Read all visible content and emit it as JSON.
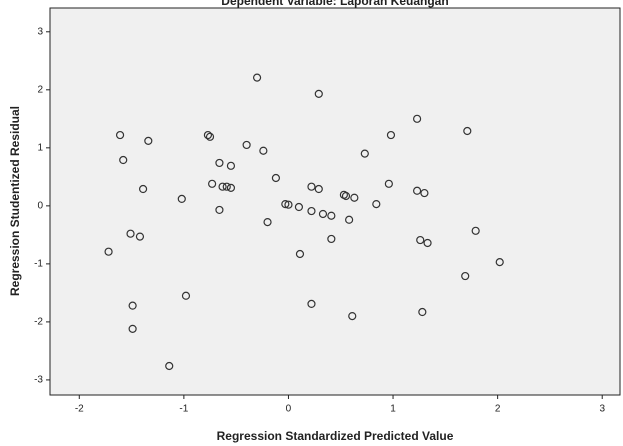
{
  "chart_data": {
    "type": "scatter",
    "title": "Dependent Variable: Laporan Keuangan",
    "xlabel": "Regression Standardized Predicted Value",
    "ylabel": "Regression Studentized Residual",
    "x": [
      -0.3,
      0.29,
      1.23,
      1.71,
      -1.61,
      -0.77,
      -0.75,
      0.98,
      -1.34,
      -0.4,
      -0.24,
      0.73,
      -1.58,
      -0.66,
      -0.55,
      -0.12,
      -0.73,
      0.96,
      -1.39,
      -0.63,
      -0.59,
      -0.55,
      0.22,
      0.29,
      1.23,
      1.3,
      0.53,
      0.55,
      0.63,
      -1.02,
      -0.03,
      0.0,
      0.1,
      0.22,
      0.33,
      0.41,
      0.84,
      -0.66,
      0.58,
      -0.2,
      -1.51,
      -1.42,
      0.41,
      1.26,
      1.33,
      1.79,
      -1.72,
      0.11,
      2.02,
      1.69,
      -0.98,
      -1.49,
      0.22,
      1.28,
      0.61,
      -1.49,
      -1.14
    ],
    "values": [
      2.21,
      1.93,
      1.5,
      1.29,
      1.22,
      1.22,
      1.19,
      1.22,
      1.12,
      1.05,
      0.95,
      0.9,
      0.79,
      0.74,
      0.69,
      0.48,
      0.38,
      0.38,
      0.29,
      0.33,
      0.33,
      0.31,
      0.33,
      0.29,
      0.26,
      0.22,
      0.19,
      0.17,
      0.14,
      0.12,
      0.03,
      0.02,
      -0.02,
      -0.09,
      -0.14,
      -0.17,
      0.03,
      -0.07,
      -0.24,
      -0.28,
      -0.48,
      -0.53,
      -0.57,
      -0.59,
      -0.64,
      -0.43,
      -0.79,
      -0.83,
      -0.97,
      -1.21,
      -1.55,
      -1.72,
      -1.69,
      -1.83,
      -1.9,
      -2.12,
      -2.76
    ],
    "color": "#333333",
    "xlim": [
      -2.28,
      3.17
    ],
    "xticks": [
      -2,
      -1,
      0,
      1,
      2,
      3
    ],
    "ylim": [
      -3.26,
      3.41
    ],
    "yticks": [
      -3,
      -2,
      -1,
      0,
      1,
      2,
      3
    ]
  }
}
